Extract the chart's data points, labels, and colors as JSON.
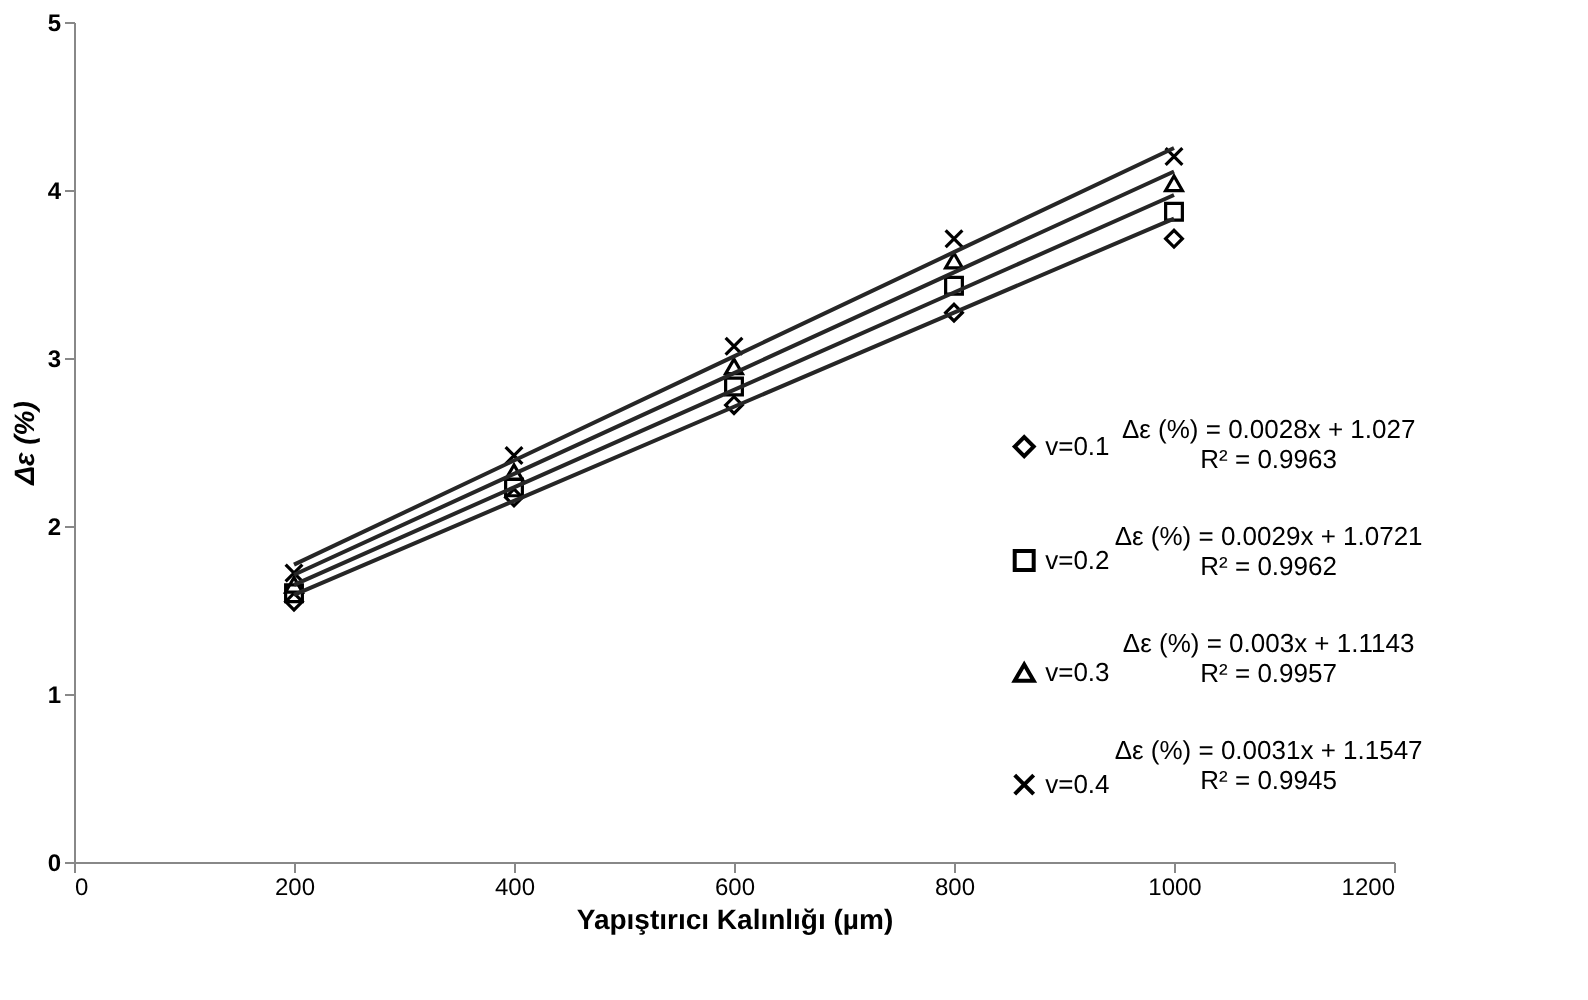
{
  "chart_data": {
    "type": "scatter",
    "xlabel": "Yapıştırıcı Kalınlığı (µm)",
    "ylabel": "Δε (%)",
    "x": [
      200,
      400,
      600,
      800,
      1000
    ],
    "xlim": [
      0,
      1200
    ],
    "xticks": [
      0,
      200,
      400,
      600,
      800,
      1000,
      1200
    ],
    "ylim": [
      0,
      5
    ],
    "yticks": [
      0,
      1,
      2,
      3,
      4,
      5
    ],
    "grid": false,
    "legend": "right",
    "series": [
      {
        "name": "v=0.1",
        "color": "#000000",
        "marker": "diamond",
        "values": [
          1.55,
          2.17,
          2.72,
          3.27,
          3.71
        ]
      },
      {
        "name": "v=0.2",
        "color": "#000000",
        "marker": "square",
        "values": [
          1.6,
          2.23,
          2.83,
          3.43,
          3.87
        ]
      },
      {
        "name": "v=0.3",
        "color": "#000000",
        "marker": "triangle",
        "values": [
          1.65,
          2.32,
          2.95,
          3.58,
          4.04
        ]
      },
      {
        "name": "v=0.4",
        "color": "#000000",
        "marker": "cross",
        "values": [
          1.72,
          2.42,
          3.07,
          3.71,
          4.2
        ]
      },
      {
        "type": "line",
        "color": "#262626",
        "values": [
          1.59,
          2.15,
          2.71,
          3.27,
          3.83
        ]
      },
      {
        "type": "line",
        "color": "#262626",
        "values": [
          1.65,
          2.23,
          2.81,
          3.39,
          3.97
        ]
      },
      {
        "type": "line",
        "color": "#262626",
        "values": [
          1.71,
          2.31,
          2.91,
          3.51,
          4.11
        ]
      },
      {
        "type": "line",
        "color": "#262626",
        "values": [
          1.77,
          2.39,
          3.01,
          3.63,
          4.25
        ]
      }
    ],
    "annotations": [
      "Δε (%) = 0.0028x + 1.027\nR² = 0.9963",
      "Δε (%) = 0.0029x + 1.0721\nR² = 0.9962",
      "Δε (%) = 0.003x + 1.1143\nR² = 0.9957",
      "Δε (%) = 0.0031x + 1.1547\nR² = 0.9945"
    ]
  }
}
